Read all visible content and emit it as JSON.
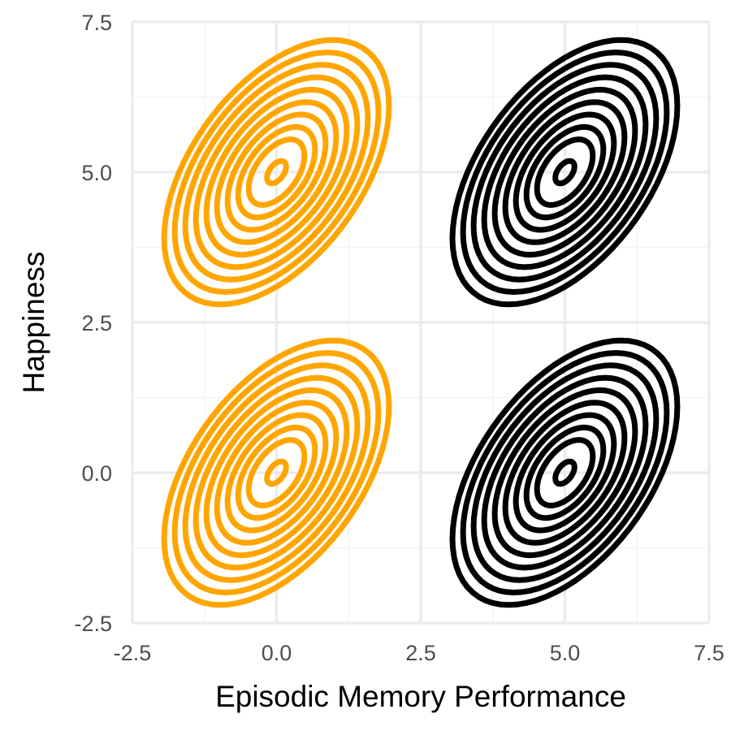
{
  "chart_data": {
    "type": "contour",
    "title": "",
    "xlabel": "Episodic Memory Performance",
    "ylabel": "Happiness",
    "xlim": [
      -2.5,
      7.5
    ],
    "ylim": [
      -2.5,
      7.5
    ],
    "x_ticks": [
      "-2.5",
      "0.0",
      "2.5",
      "5.0",
      "7.5"
    ],
    "y_ticks": [
      "-2.5",
      "0.0",
      "2.5",
      "5.0",
      "7.5"
    ],
    "grid": true,
    "legend": "none",
    "distributions": [
      {
        "center": [
          0,
          5
        ],
        "color": "#FFA500"
      },
      {
        "center": [
          5,
          5
        ],
        "color": "#000000"
      },
      {
        "center": [
          0,
          0
        ],
        "color": "#FFA500"
      },
      {
        "center": [
          5,
          0
        ],
        "color": "#000000"
      }
    ],
    "correlation": 0.5,
    "contour_outer_extent": [
      1.95,
      2.2
    ],
    "contour_levels": 10
  }
}
